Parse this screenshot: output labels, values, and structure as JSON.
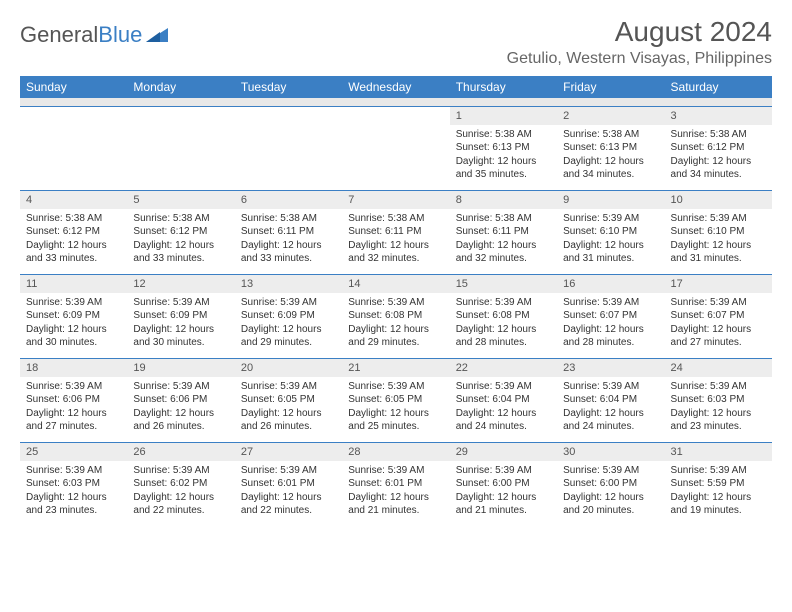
{
  "logo": {
    "text1": "General",
    "text2": "Blue"
  },
  "title": "August 2024",
  "location": "Getulio, Western Visayas, Philippines",
  "colors": {
    "header_bg": "#3b7fc4",
    "header_fg": "#ffffff",
    "daynum_bg": "#ededed",
    "border": "#3b7fc4",
    "text": "#333333"
  },
  "daysOfWeek": [
    "Sunday",
    "Monday",
    "Tuesday",
    "Wednesday",
    "Thursday",
    "Friday",
    "Saturday"
  ],
  "weeks": [
    [
      {
        "n": "",
        "sr": "",
        "ss": "",
        "dl": ""
      },
      {
        "n": "",
        "sr": "",
        "ss": "",
        "dl": ""
      },
      {
        "n": "",
        "sr": "",
        "ss": "",
        "dl": ""
      },
      {
        "n": "",
        "sr": "",
        "ss": "",
        "dl": ""
      },
      {
        "n": "1",
        "sr": "Sunrise: 5:38 AM",
        "ss": "Sunset: 6:13 PM",
        "dl": "Daylight: 12 hours and 35 minutes."
      },
      {
        "n": "2",
        "sr": "Sunrise: 5:38 AM",
        "ss": "Sunset: 6:13 PM",
        "dl": "Daylight: 12 hours and 34 minutes."
      },
      {
        "n": "3",
        "sr": "Sunrise: 5:38 AM",
        "ss": "Sunset: 6:12 PM",
        "dl": "Daylight: 12 hours and 34 minutes."
      }
    ],
    [
      {
        "n": "4",
        "sr": "Sunrise: 5:38 AM",
        "ss": "Sunset: 6:12 PM",
        "dl": "Daylight: 12 hours and 33 minutes."
      },
      {
        "n": "5",
        "sr": "Sunrise: 5:38 AM",
        "ss": "Sunset: 6:12 PM",
        "dl": "Daylight: 12 hours and 33 minutes."
      },
      {
        "n": "6",
        "sr": "Sunrise: 5:38 AM",
        "ss": "Sunset: 6:11 PM",
        "dl": "Daylight: 12 hours and 33 minutes."
      },
      {
        "n": "7",
        "sr": "Sunrise: 5:38 AM",
        "ss": "Sunset: 6:11 PM",
        "dl": "Daylight: 12 hours and 32 minutes."
      },
      {
        "n": "8",
        "sr": "Sunrise: 5:38 AM",
        "ss": "Sunset: 6:11 PM",
        "dl": "Daylight: 12 hours and 32 minutes."
      },
      {
        "n": "9",
        "sr": "Sunrise: 5:39 AM",
        "ss": "Sunset: 6:10 PM",
        "dl": "Daylight: 12 hours and 31 minutes."
      },
      {
        "n": "10",
        "sr": "Sunrise: 5:39 AM",
        "ss": "Sunset: 6:10 PM",
        "dl": "Daylight: 12 hours and 31 minutes."
      }
    ],
    [
      {
        "n": "11",
        "sr": "Sunrise: 5:39 AM",
        "ss": "Sunset: 6:09 PM",
        "dl": "Daylight: 12 hours and 30 minutes."
      },
      {
        "n": "12",
        "sr": "Sunrise: 5:39 AM",
        "ss": "Sunset: 6:09 PM",
        "dl": "Daylight: 12 hours and 30 minutes."
      },
      {
        "n": "13",
        "sr": "Sunrise: 5:39 AM",
        "ss": "Sunset: 6:09 PM",
        "dl": "Daylight: 12 hours and 29 minutes."
      },
      {
        "n": "14",
        "sr": "Sunrise: 5:39 AM",
        "ss": "Sunset: 6:08 PM",
        "dl": "Daylight: 12 hours and 29 minutes."
      },
      {
        "n": "15",
        "sr": "Sunrise: 5:39 AM",
        "ss": "Sunset: 6:08 PM",
        "dl": "Daylight: 12 hours and 28 minutes."
      },
      {
        "n": "16",
        "sr": "Sunrise: 5:39 AM",
        "ss": "Sunset: 6:07 PM",
        "dl": "Daylight: 12 hours and 28 minutes."
      },
      {
        "n": "17",
        "sr": "Sunrise: 5:39 AM",
        "ss": "Sunset: 6:07 PM",
        "dl": "Daylight: 12 hours and 27 minutes."
      }
    ],
    [
      {
        "n": "18",
        "sr": "Sunrise: 5:39 AM",
        "ss": "Sunset: 6:06 PM",
        "dl": "Daylight: 12 hours and 27 minutes."
      },
      {
        "n": "19",
        "sr": "Sunrise: 5:39 AM",
        "ss": "Sunset: 6:06 PM",
        "dl": "Daylight: 12 hours and 26 minutes."
      },
      {
        "n": "20",
        "sr": "Sunrise: 5:39 AM",
        "ss": "Sunset: 6:05 PM",
        "dl": "Daylight: 12 hours and 26 minutes."
      },
      {
        "n": "21",
        "sr": "Sunrise: 5:39 AM",
        "ss": "Sunset: 6:05 PM",
        "dl": "Daylight: 12 hours and 25 minutes."
      },
      {
        "n": "22",
        "sr": "Sunrise: 5:39 AM",
        "ss": "Sunset: 6:04 PM",
        "dl": "Daylight: 12 hours and 24 minutes."
      },
      {
        "n": "23",
        "sr": "Sunrise: 5:39 AM",
        "ss": "Sunset: 6:04 PM",
        "dl": "Daylight: 12 hours and 24 minutes."
      },
      {
        "n": "24",
        "sr": "Sunrise: 5:39 AM",
        "ss": "Sunset: 6:03 PM",
        "dl": "Daylight: 12 hours and 23 minutes."
      }
    ],
    [
      {
        "n": "25",
        "sr": "Sunrise: 5:39 AM",
        "ss": "Sunset: 6:03 PM",
        "dl": "Daylight: 12 hours and 23 minutes."
      },
      {
        "n": "26",
        "sr": "Sunrise: 5:39 AM",
        "ss": "Sunset: 6:02 PM",
        "dl": "Daylight: 12 hours and 22 minutes."
      },
      {
        "n": "27",
        "sr": "Sunrise: 5:39 AM",
        "ss": "Sunset: 6:01 PM",
        "dl": "Daylight: 12 hours and 22 minutes."
      },
      {
        "n": "28",
        "sr": "Sunrise: 5:39 AM",
        "ss": "Sunset: 6:01 PM",
        "dl": "Daylight: 12 hours and 21 minutes."
      },
      {
        "n": "29",
        "sr": "Sunrise: 5:39 AM",
        "ss": "Sunset: 6:00 PM",
        "dl": "Daylight: 12 hours and 21 minutes."
      },
      {
        "n": "30",
        "sr": "Sunrise: 5:39 AM",
        "ss": "Sunset: 6:00 PM",
        "dl": "Daylight: 12 hours and 20 minutes."
      },
      {
        "n": "31",
        "sr": "Sunrise: 5:39 AM",
        "ss": "Sunset: 5:59 PM",
        "dl": "Daylight: 12 hours and 19 minutes."
      }
    ]
  ]
}
